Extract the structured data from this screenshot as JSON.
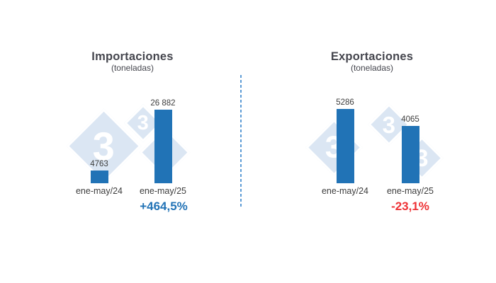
{
  "page": {
    "background": "#ffffff"
  },
  "watermark": {
    "glyph": "3",
    "color": "#dbe6f3"
  },
  "divider": {
    "color": "#5c9bd5",
    "style": "vertical-dashed"
  },
  "colors": {
    "bar": "#2173b6",
    "title": "#45464e",
    "label": "#3d3d3d",
    "positive": "#2273b6",
    "negative": "#ee3135"
  },
  "chart_data": [
    {
      "type": "bar",
      "title": "Importaciones",
      "subtitle": "(toneladas)",
      "categories": [
        "ene-may/24",
        "ene-may/25"
      ],
      "values": [
        4763,
        26882
      ],
      "value_labels": [
        "4763",
        "26 882"
      ],
      "change_label": "+464,5%",
      "change_direction": "positive",
      "ylim": [
        0,
        26882
      ],
      "grid": false,
      "legend": false
    },
    {
      "type": "bar",
      "title": "Exportaciones",
      "subtitle": "(toneladas)",
      "categories": [
        "ene-may/24",
        "ene-may/25"
      ],
      "values": [
        5286,
        4065
      ],
      "value_labels": [
        "5286",
        "4065"
      ],
      "change_label": "-23,1%",
      "change_direction": "negative",
      "ylim": [
        0,
        5286
      ],
      "grid": false,
      "legend": false
    }
  ]
}
